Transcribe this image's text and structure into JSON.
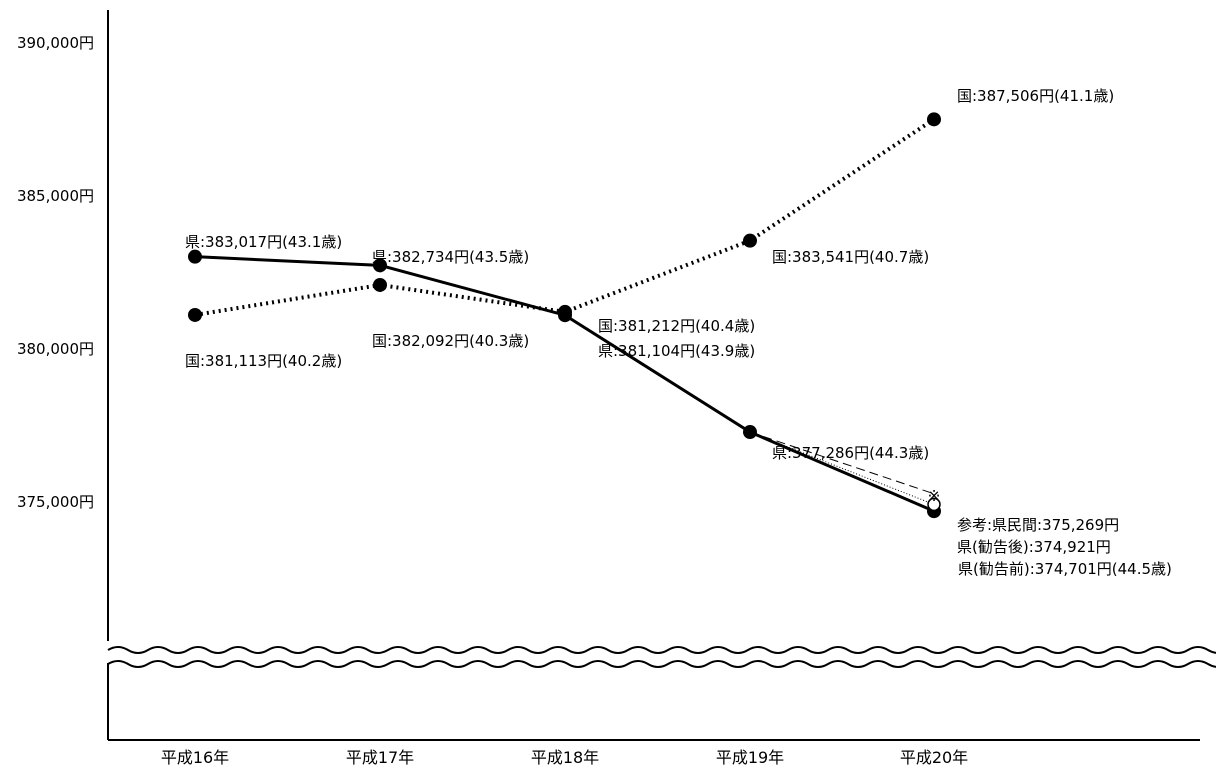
{
  "chart_data": {
    "type": "line",
    "title": "",
    "xlabel": "",
    "ylabel": "",
    "categories": [
      "平成16年",
      "平成17年",
      "平成18年",
      "平成19年",
      "平成20年"
    ],
    "y_ticks": [
      "390,000円",
      "385,000円",
      "380,000円",
      "375,000円"
    ],
    "ylim": [
      375000,
      390000
    ],
    "y_axis_break": true,
    "series": [
      {
        "values": [
          383017,
          382734,
          381104,
          377286,
          374701
        ],
        "labels": [
          "県:383,017円(43.1歳)",
          "県:382,734円(43.5歳)",
          "県:381,104円(43.9歳)",
          "県:377,286円(44.3歳)",
          "県(勧告前):374,701円(44.5歳)"
        ],
        "line_style": "solid",
        "marker": "filled-circle"
      },
      {
        "values": [
          381113,
          382092,
          381212,
          383541,
          387506
        ],
        "labels": [
          "国:381,113円(40.2歳)",
          "国:382,092円(40.3歳)",
          "国:381,212円(40.4歳)",
          "国:383,541円(40.7歳)",
          "国:387,506円(41.1歳)"
        ],
        "line_style": "dotted",
        "marker": "filled-circle"
      }
    ],
    "extra_points": [
      {
        "from": {
          "category": "平成19年",
          "value": 377286
        },
        "category": "平成20年",
        "value": 374921,
        "label": "県(勧告後):374,921円",
        "marker": "open-circle",
        "line_style": "fine-dotted"
      },
      {
        "from": {
          "category": "平成19年",
          "value": 377286
        },
        "category": "平成20年",
        "value": 375269,
        "label": "参考:県民間:375,269円",
        "marker": "※",
        "line_style": "dashed"
      }
    ],
    "colors": {
      "line": "#000000",
      "background": "#ffffff"
    }
  }
}
